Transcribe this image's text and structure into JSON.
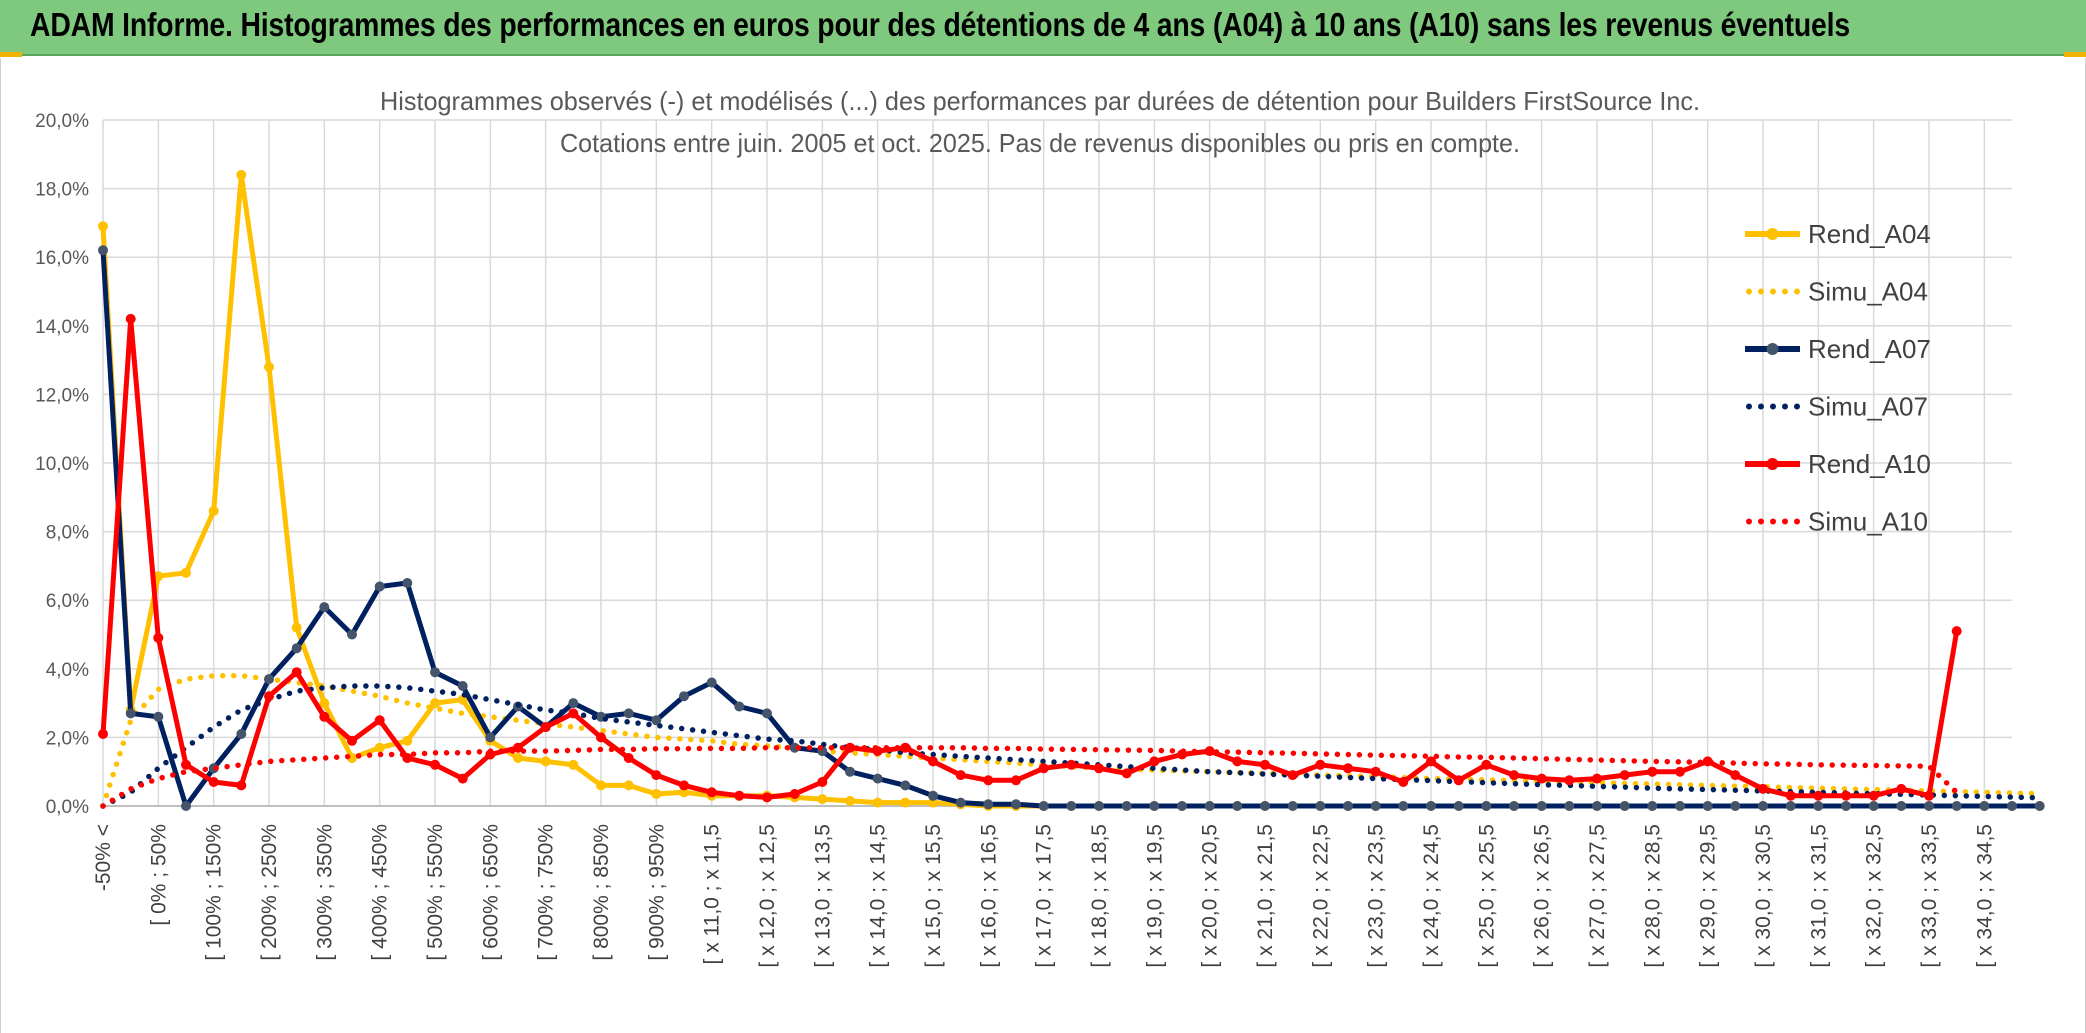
{
  "header": {
    "title": "ADAM Informe. Histogrammes des performances en euros pour des détentions de 4 ans (A04) à 10 ans (A10) sans les revenus éventuels"
  },
  "colors": {
    "banner": "#7fc97f",
    "A04": "#FFC000",
    "A07": "#002060",
    "A10": "#FF0000",
    "grid": "#d9d9d9"
  },
  "chart_data": {
    "type": "line",
    "title": "Histogrammes observés (-) et modélisés (...) des performances par durées de détention pour Builders FirstSource Inc.",
    "subtitle": "Cotations entre juin. 2005 et oct. 2025. Pas de revenus disponibles ou pris en compte.",
    "xlabel": "",
    "ylabel": "",
    "ylim": [
      0,
      20
    ],
    "yticks": [
      "0,0%",
      "2,0%",
      "4,0%",
      "6,0%",
      "8,0%",
      "10,0%",
      "12,0%",
      "14,0%",
      "16,0%",
      "18,0%",
      "20,0%"
    ],
    "grid": true,
    "legend_position": "right",
    "tick_labels": [
      "-50% <",
      "[ 0% ; 50%",
      "[ 100% ; 150%",
      "[ 200% ; 250%",
      "[ 300% ; 350%",
      "[ 400% ; 450%",
      "[ 500% ; 550%",
      "[ 600% ; 650%",
      "[ 700% ; 750%",
      "[ 800% ; 850%",
      "[ 900% ; 950%",
      "[ x 11,0 ; x 11,5",
      "[ x 12,0 ; x 12,5",
      "[ x 13,0 ; x 13,5",
      "[ x 14,0 ; x 14,5",
      "[ x 15,0 ; x 15,5",
      "[ x 16,0 ; x 16,5",
      "[ x 17,0 ; x 17,5",
      "[ x 18,0 ; x 18,5",
      "[ x 19,0 ; x 19,5",
      "[ x 20,0 ; x 20,5",
      "[ x 21,0 ; x 21,5",
      "[ x 22,0 ; x 22,5",
      "[ x 23,0 ; x 23,5",
      "[ x 24,0 ; x 24,5",
      "[ x 25,0 ; x 25,5",
      "[ x 26,0 ; x 26,5",
      "[ x 27,0 ; x 27,5",
      "[ x 28,0 ; x 28,5",
      "[ x 29,0 ; x 29,5",
      "[ x 30,0 ; x 30,5",
      "[ x 31,0 ; x 31,5",
      "[ x 32,0 ; x 32,5",
      "[ x 33,0 ; x 33,5",
      "[ x 34,0 ; x 34,5"
    ],
    "series": [
      {
        "name": "Rend_A04",
        "style": "solid",
        "color": "#FFC000",
        "values": [
          16.9,
          2.8,
          6.7,
          6.8,
          8.6,
          18.4,
          12.8,
          5.2,
          3.0,
          1.4,
          1.7,
          1.9,
          3.0,
          3.1,
          1.9,
          1.4,
          1.3,
          1.2,
          0.6,
          0.6,
          0.35,
          0.4,
          0.3,
          0.3,
          0.3,
          0.25,
          0.2,
          0.15,
          0.1,
          0.1,
          0.1,
          0.05,
          0,
          0,
          0,
          0,
          0,
          0,
          0,
          0,
          0,
          0,
          0,
          0,
          0,
          0,
          0,
          0,
          0,
          0,
          0,
          0,
          0,
          0,
          0,
          0,
          0,
          0,
          0,
          0,
          0,
          0,
          0,
          0,
          0,
          0,
          0,
          0,
          0,
          0,
          0
        ]
      },
      {
        "name": "Simu_A04",
        "style": "dotted",
        "color": "#FFC000",
        "values": [
          0.0,
          2.5,
          3.4,
          3.7,
          3.8,
          3.8,
          3.7,
          3.6,
          3.5,
          3.35,
          3.2,
          3.0,
          2.85,
          2.7,
          2.6,
          2.5,
          2.4,
          2.3,
          2.2,
          2.1,
          2.0,
          1.95,
          1.9,
          1.8,
          1.75,
          1.7,
          1.6,
          1.55,
          1.5,
          1.45,
          1.4,
          1.35,
          1.3,
          1.25,
          1.2,
          1.15,
          1.1,
          1.07,
          1.05,
          1.02,
          1.0,
          0.97,
          0.95,
          0.93,
          0.9,
          0.88,
          0.85,
          0.83,
          0.8,
          0.78,
          0.76,
          0.74,
          0.72,
          0.7,
          0.68,
          0.66,
          0.64,
          0.62,
          0.6,
          0.58,
          0.56,
          0.54,
          0.52,
          0.5,
          0.48,
          0.46,
          0.44,
          0.42,
          0.4,
          0.38,
          0.36
        ]
      },
      {
        "name": "Rend_A07",
        "style": "solid",
        "color": "#002060",
        "values": [
          16.2,
          2.7,
          2.6,
          0.0,
          1.1,
          2.1,
          3.7,
          4.6,
          5.8,
          5.0,
          6.4,
          6.5,
          3.9,
          3.5,
          2.0,
          2.9,
          2.3,
          3.0,
          2.6,
          2.7,
          2.5,
          3.2,
          3.6,
          2.9,
          2.7,
          1.7,
          1.6,
          1.0,
          0.8,
          0.6,
          0.3,
          0.1,
          0.05,
          0.05,
          0,
          0,
          0,
          0,
          0,
          0,
          0,
          0,
          0,
          0,
          0,
          0,
          0,
          0,
          0,
          0,
          0,
          0,
          0,
          0,
          0,
          0,
          0,
          0,
          0,
          0,
          0,
          0,
          0,
          0,
          0,
          0,
          0,
          0,
          0,
          0,
          0
        ]
      },
      {
        "name": "Simu_A07",
        "style": "dotted",
        "color": "#002060",
        "values": [
          0.0,
          0.4,
          1.1,
          1.7,
          2.3,
          2.8,
          3.1,
          3.35,
          3.45,
          3.5,
          3.5,
          3.45,
          3.35,
          3.25,
          3.1,
          2.95,
          2.8,
          2.7,
          2.55,
          2.45,
          2.35,
          2.25,
          2.15,
          2.05,
          1.95,
          1.9,
          1.8,
          1.7,
          1.65,
          1.55,
          1.5,
          1.45,
          1.4,
          1.35,
          1.3,
          1.25,
          1.2,
          1.15,
          1.1,
          1.05,
          1.0,
          0.97,
          0.93,
          0.9,
          0.87,
          0.83,
          0.8,
          0.77,
          0.74,
          0.71,
          0.68,
          0.65,
          0.62,
          0.6,
          0.57,
          0.55,
          0.52,
          0.5,
          0.48,
          0.46,
          0.44,
          0.42,
          0.4,
          0.38,
          0.36,
          0.34,
          0.32,
          0.3,
          0.28,
          0.26,
          0.24
        ]
      },
      {
        "name": "Rend_A10",
        "style": "solid",
        "color": "#FF0000",
        "values": [
          2.1,
          14.2,
          4.9,
          1.2,
          0.7,
          0.6,
          3.2,
          3.9,
          2.6,
          1.9,
          2.5,
          1.4,
          1.2,
          0.8,
          1.5,
          1.7,
          2.3,
          2.7,
          2.0,
          1.4,
          0.9,
          0.6,
          0.4,
          0.3,
          0.25,
          0.35,
          0.7,
          1.7,
          1.6,
          1.7,
          1.3,
          0.9,
          0.75,
          0.75,
          1.1,
          1.2,
          1.1,
          0.95,
          1.3,
          1.5,
          1.6,
          1.3,
          1.2,
          0.9,
          1.2,
          1.1,
          1.0,
          0.7,
          1.3,
          0.75,
          1.2,
          0.9,
          0.8,
          0.75,
          0.8,
          0.9,
          1.0,
          1.0,
          1.3,
          0.9,
          0.5,
          0.3,
          0.3,
          0.3,
          0.3,
          0.5,
          0.3,
          5.1
        ]
      },
      {
        "name": "Simu_A10",
        "style": "dotted",
        "color": "#FF0000",
        "values": [
          0.0,
          0.5,
          0.8,
          1.0,
          1.1,
          1.2,
          1.3,
          1.35,
          1.4,
          1.45,
          1.5,
          1.5,
          1.55,
          1.55,
          1.6,
          1.6,
          1.6,
          1.62,
          1.65,
          1.65,
          1.67,
          1.67,
          1.68,
          1.68,
          1.7,
          1.7,
          1.7,
          1.7,
          1.7,
          1.7,
          1.7,
          1.7,
          1.68,
          1.68,
          1.66,
          1.65,
          1.64,
          1.63,
          1.62,
          1.6,
          1.58,
          1.57,
          1.55,
          1.54,
          1.52,
          1.5,
          1.48,
          1.47,
          1.45,
          1.43,
          1.42,
          1.4,
          1.38,
          1.36,
          1.34,
          1.32,
          1.3,
          1.29,
          1.27,
          1.25,
          1.23,
          1.22,
          1.2,
          1.19,
          1.18,
          1.17,
          1.16,
          0.4
        ]
      }
    ]
  }
}
